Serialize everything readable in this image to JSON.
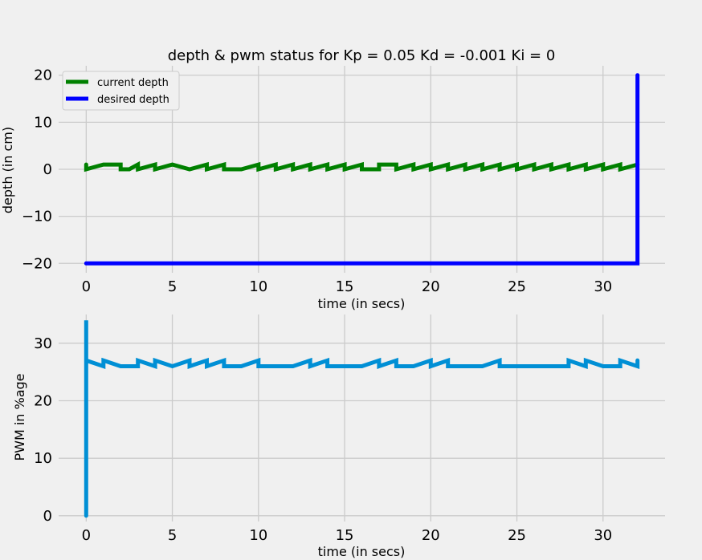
{
  "chart_data": [
    {
      "type": "line",
      "title": "depth & pwm status for Kp = 0.05 Kd = -0.001 Ki = 0",
      "xlabel": "time (in secs)",
      "ylabel": "depth (in cm)",
      "xlim": [
        -1.6,
        33.6
      ],
      "ylim": [
        -22,
        22
      ],
      "xticks": [
        0,
        5,
        10,
        15,
        20,
        25,
        30
      ],
      "yticks": [
        -20,
        -10,
        0,
        10,
        20
      ],
      "ytick_labels": [
        "−20",
        "−10",
        "0",
        "10",
        "20"
      ],
      "grid": true,
      "legend": "upper-left",
      "series": [
        {
          "name": "current depth",
          "color": "#008000",
          "x": [
            0,
            0,
            1,
            1,
            2,
            2,
            2.5,
            3,
            3,
            4,
            4,
            5,
            5,
            6,
            6,
            7,
            7,
            8,
            8,
            9,
            9,
            10,
            10,
            11,
            11,
            12,
            12,
            13,
            13,
            14,
            14,
            15,
            15,
            16,
            16,
            17,
            17,
            18,
            18,
            19,
            19,
            20,
            20,
            21,
            21,
            22,
            22,
            23,
            23,
            24,
            24,
            25,
            25,
            26,
            26,
            27,
            27,
            28,
            28,
            29,
            29,
            30,
            30,
            31,
            31,
            32
          ],
          "y": [
            1,
            0,
            1,
            1,
            1,
            0,
            0,
            1,
            0,
            1,
            0,
            1,
            1,
            0,
            0,
            1,
            0,
            1,
            0,
            0,
            0,
            1,
            0,
            1,
            0,
            1,
            0,
            1,
            0,
            1,
            0,
            1,
            0,
            1,
            0,
            0,
            1,
            1,
            0,
            1,
            0,
            1,
            0,
            1,
            0,
            1,
            0,
            1,
            0,
            1,
            0,
            1,
            0,
            1,
            0,
            1,
            0,
            1,
            0,
            1,
            0,
            1,
            0,
            1,
            0,
            1
          ]
        },
        {
          "name": "desired depth",
          "color": "#0000ff",
          "x": [
            0,
            32,
            32
          ],
          "y": [
            -20,
            -20,
            20
          ]
        }
      ]
    },
    {
      "type": "line",
      "xlabel": "time (in secs)",
      "ylabel": "PWM in %age",
      "xlim": [
        -1.6,
        33.6
      ],
      "ylim": [
        -1,
        35
      ],
      "xticks": [
        0,
        5,
        10,
        15,
        20,
        25,
        30
      ],
      "yticks": [
        0,
        10,
        20,
        30
      ],
      "ytick_labels": [
        "0",
        "10",
        "20",
        "30"
      ],
      "grid": true,
      "series": [
        {
          "color": "#008fd5",
          "x": [
            0,
            0,
            0,
            1,
            1,
            2,
            3,
            3,
            4,
            4,
            5,
            6,
            6,
            7,
            7,
            8,
            8,
            9,
            10,
            10,
            11,
            12,
            13,
            13,
            14,
            14,
            15,
            16,
            17,
            17,
            18,
            18,
            19,
            20,
            20,
            21,
            21,
            22,
            23,
            24,
            24,
            25,
            26,
            27,
            28,
            28,
            29,
            29,
            30,
            31,
            31,
            32,
            32
          ],
          "y": [
            0,
            34,
            27,
            26,
            27,
            26,
            26,
            27,
            26,
            27,
            26,
            27,
            26,
            27,
            26,
            27,
            26,
            26,
            27,
            26,
            26,
            26,
            27,
            26,
            27,
            26,
            26,
            26,
            27,
            26,
            27,
            26,
            26,
            27,
            26,
            27,
            26,
            26,
            26,
            27,
            26,
            26,
            26,
            26,
            26,
            27,
            26,
            27,
            26,
            26,
            27,
            26,
            27
          ]
        }
      ]
    }
  ]
}
